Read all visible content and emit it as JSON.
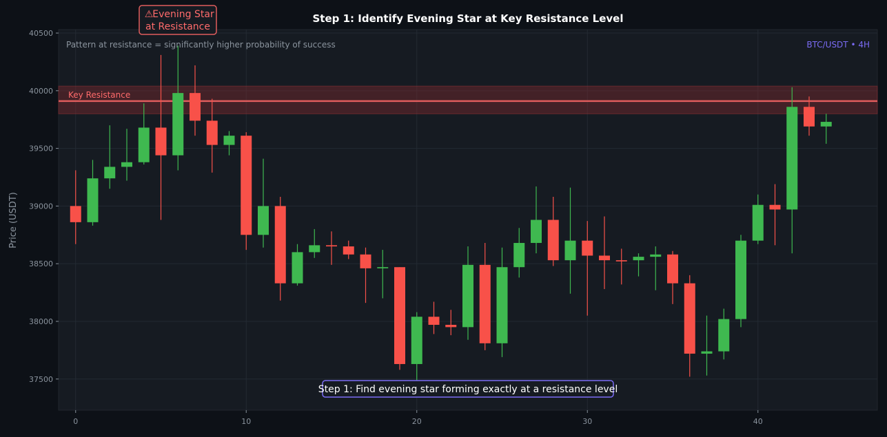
{
  "chart_data": {
    "type": "candlestick",
    "title": "Step 1: Identify Evening Star at Key Resistance Level",
    "subtitle": "Pattern at resistance = significantly higher probability of success",
    "pair_label": "BTC/USDT • 4H",
    "ylabel": "Price (USDT)",
    "xlim": [
      -1,
      47
    ],
    "ylim": [
      37230,
      40530
    ],
    "x_ticks": [
      0,
      10,
      20,
      30,
      40
    ],
    "y_ticks": [
      37500,
      38000,
      38500,
      39000,
      39500,
      40000,
      40500
    ],
    "grid": true,
    "colors": {
      "up": "#3fb950",
      "down": "#f85149",
      "resistance": "#e05d5d",
      "callout_border": "#e05d5d",
      "footer_border": "#7b6cf6",
      "background": "#0d1117",
      "plot_background": "#161b22"
    },
    "resistance": {
      "label": "Key Resistance",
      "level": 39910,
      "zone_low": 39800,
      "zone_high": 40040
    },
    "callout": {
      "icon": "warning-icon",
      "icon_glyph": "⚠",
      "line1": "Evening Star",
      "line2": "at Resistance"
    },
    "footer_note": "Step 1: Find evening star forming exactly at a resistance level",
    "candles": [
      {
        "x": 0,
        "open": 39000,
        "high": 39310,
        "low": 38670,
        "close": 38860
      },
      {
        "x": 1,
        "open": 38860,
        "high": 39400,
        "low": 38830,
        "close": 39240
      },
      {
        "x": 2,
        "open": 39240,
        "high": 39700,
        "low": 39150,
        "close": 39340
      },
      {
        "x": 3,
        "open": 39340,
        "high": 39670,
        "low": 39220,
        "close": 39380
      },
      {
        "x": 4,
        "open": 39380,
        "high": 39890,
        "low": 39360,
        "close": 39680
      },
      {
        "x": 5,
        "open": 39680,
        "high": 40310,
        "low": 38880,
        "close": 39440
      },
      {
        "x": 6,
        "open": 39440,
        "high": 40390,
        "low": 39310,
        "close": 39980
      },
      {
        "x": 7,
        "open": 39980,
        "high": 40220,
        "low": 39610,
        "close": 39740
      },
      {
        "x": 8,
        "open": 39740,
        "high": 39930,
        "low": 39290,
        "close": 39530
      },
      {
        "x": 9,
        "open": 39530,
        "high": 39650,
        "low": 39440,
        "close": 39610
      },
      {
        "x": 10,
        "open": 39610,
        "high": 39640,
        "low": 38620,
        "close": 38750
      },
      {
        "x": 11,
        "open": 38750,
        "high": 39410,
        "low": 38640,
        "close": 39000
      },
      {
        "x": 12,
        "open": 39000,
        "high": 39080,
        "low": 38180,
        "close": 38330
      },
      {
        "x": 13,
        "open": 38330,
        "high": 38670,
        "low": 38310,
        "close": 38600
      },
      {
        "x": 14,
        "open": 38600,
        "high": 38800,
        "low": 38550,
        "close": 38660
      },
      {
        "x": 15,
        "open": 38660,
        "high": 38780,
        "low": 38490,
        "close": 38650
      },
      {
        "x": 16,
        "open": 38650,
        "high": 38700,
        "low": 38540,
        "close": 38580
      },
      {
        "x": 17,
        "open": 38580,
        "high": 38640,
        "low": 38160,
        "close": 38460
      },
      {
        "x": 18,
        "open": 38460,
        "high": 38620,
        "low": 38200,
        "close": 38470
      },
      {
        "x": 19,
        "open": 38470,
        "high": 38470,
        "low": 37580,
        "close": 37630
      },
      {
        "x": 20,
        "open": 37630,
        "high": 38080,
        "low": 37490,
        "close": 38040
      },
      {
        "x": 21,
        "open": 38040,
        "high": 38170,
        "low": 37890,
        "close": 37970
      },
      {
        "x": 22,
        "open": 37970,
        "high": 38100,
        "low": 37880,
        "close": 37950
      },
      {
        "x": 23,
        "open": 37950,
        "high": 38650,
        "low": 37840,
        "close": 38490
      },
      {
        "x": 24,
        "open": 38490,
        "high": 38680,
        "low": 37750,
        "close": 37810
      },
      {
        "x": 25,
        "open": 37810,
        "high": 38640,
        "low": 37690,
        "close": 38470
      },
      {
        "x": 26,
        "open": 38470,
        "high": 38810,
        "low": 38380,
        "close": 38680
      },
      {
        "x": 27,
        "open": 38680,
        "high": 39170,
        "low": 38590,
        "close": 38880
      },
      {
        "x": 28,
        "open": 38880,
        "high": 39080,
        "low": 38480,
        "close": 38530
      },
      {
        "x": 29,
        "open": 38530,
        "high": 39160,
        "low": 38240,
        "close": 38700
      },
      {
        "x": 30,
        "open": 38700,
        "high": 38870,
        "low": 38050,
        "close": 38570
      },
      {
        "x": 31,
        "open": 38570,
        "high": 38910,
        "low": 38280,
        "close": 38530
      },
      {
        "x": 32,
        "open": 38530,
        "high": 38630,
        "low": 38320,
        "close": 38520
      },
      {
        "x": 33,
        "open": 38530,
        "high": 38590,
        "low": 38390,
        "close": 38560
      },
      {
        "x": 34,
        "open": 38560,
        "high": 38650,
        "low": 38270,
        "close": 38580
      },
      {
        "x": 35,
        "open": 38580,
        "high": 38610,
        "low": 38150,
        "close": 38330
      },
      {
        "x": 36,
        "open": 38330,
        "high": 38400,
        "low": 37520,
        "close": 37720
      },
      {
        "x": 37,
        "open": 37720,
        "high": 38050,
        "low": 37530,
        "close": 37740
      },
      {
        "x": 38,
        "open": 37740,
        "high": 38110,
        "low": 37670,
        "close": 38020
      },
      {
        "x": 39,
        "open": 38020,
        "high": 38750,
        "low": 37950,
        "close": 38700
      },
      {
        "x": 40,
        "open": 38700,
        "high": 39100,
        "low": 38670,
        "close": 39010
      },
      {
        "x": 41,
        "open": 39010,
        "high": 39190,
        "low": 38660,
        "close": 38970
      },
      {
        "x": 42,
        "open": 38970,
        "high": 40030,
        "low": 38590,
        "close": 39860
      },
      {
        "x": 43,
        "open": 39860,
        "high": 39950,
        "low": 39610,
        "close": 39690
      },
      {
        "x": 44,
        "open": 39690,
        "high": 39800,
        "low": 39540,
        "close": 39730
      }
    ]
  }
}
